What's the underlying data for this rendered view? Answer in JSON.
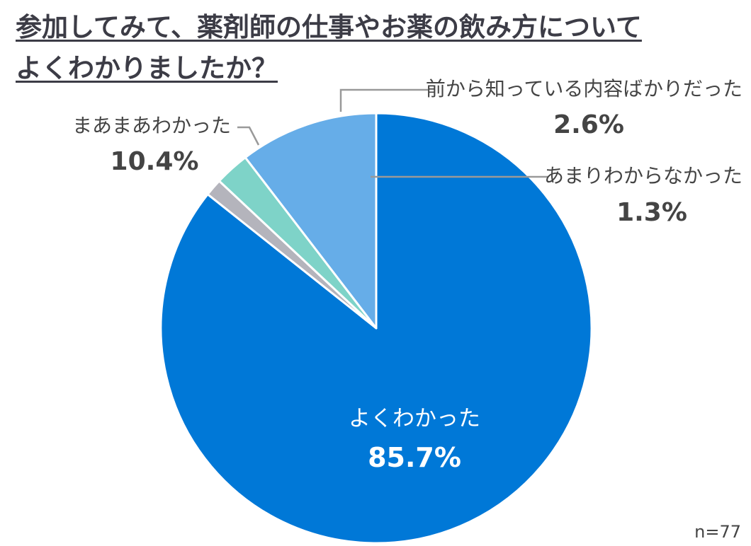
{
  "page": {
    "title_line1": "参加してみて、薬剤師の仕事やお薬の飲み方について",
    "title_line2": "よくわかりましたか？",
    "sample_note": "n=77"
  },
  "chart_data": {
    "type": "pie",
    "title": "参加してみて、薬剤師の仕事やお薬の飲み方について よくわかりましたか？",
    "start": "12 o'clock",
    "direction": "clockwise",
    "slices": [
      {
        "label": "よくわかった",
        "value": 85.7,
        "display": "85.7%",
        "color": "#0078d7",
        "label_placement": "inside"
      },
      {
        "label": "あまりわからなかった",
        "value": 1.3,
        "display": "1.3%",
        "color": "#b4b4bc",
        "label_placement": "outside-right"
      },
      {
        "label": "前から知っている内容ばかりだった",
        "value": 2.6,
        "display": "2.6%",
        "color": "#7ed3c8",
        "label_placement": "outside-top-right"
      },
      {
        "label": "まあまあわかった",
        "value": 10.4,
        "display": "10.4%",
        "color": "#66ade8",
        "label_placement": "outside-left"
      }
    ],
    "leader_line_color": "#999999",
    "inside_label_color": "#ffffff",
    "outside_label_color": "#444444"
  }
}
